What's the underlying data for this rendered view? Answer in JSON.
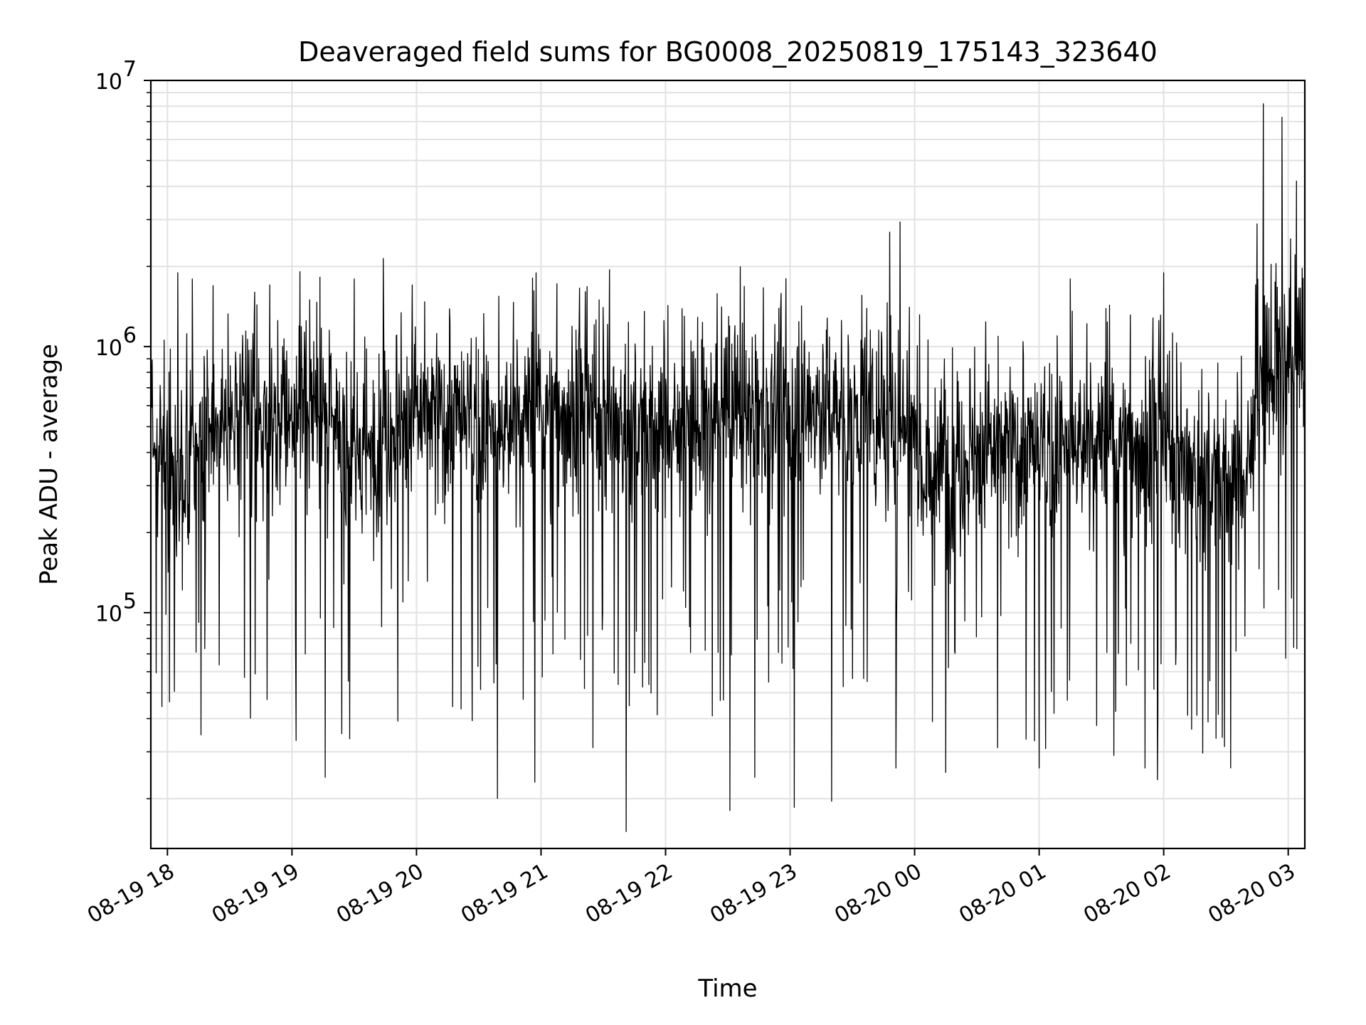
{
  "chart_data": {
    "type": "line",
    "title": "Deaveraged field sums for BG0008_20250819_175143_323640",
    "xlabel": "Time",
    "ylabel": "Peak ADU - average",
    "yscale": "log",
    "ylim": [
      13000,
      10000000
    ],
    "xlim": [
      "2025-08-19 17:52",
      "2025-08-20 03:08"
    ],
    "grid": true,
    "line_color": "#000000",
    "x_ticks": [
      "08-19 18",
      "08-19 19",
      "08-19 20",
      "08-19 21",
      "08-19 22",
      "08-19 23",
      "08-20 00",
      "08-20 01",
      "08-20 02",
      "08-20 03"
    ],
    "y_ticks": [
      {
        "base": "10",
        "exp": "5",
        "value": 100000
      },
      {
        "base": "10",
        "exp": "6",
        "value": 1000000
      },
      {
        "base": "10",
        "exp": "7",
        "value": 10000000
      }
    ],
    "series": [
      {
        "points": [
          [
            "2025-08-19 17:52",
            560000
          ],
          [
            "2025-08-19 18:00",
            350000
          ],
          [
            "2025-08-19 18:05",
            300000
          ],
          [
            "2025-08-19 18:15",
            420000
          ],
          [
            "2025-08-19 18:25",
            480000
          ],
          [
            "2025-08-19 18:40",
            530000
          ],
          [
            "2025-08-19 18:55",
            570000
          ],
          [
            "2025-08-19 19:10",
            610000
          ],
          [
            "2025-08-19 19:25",
            430000
          ],
          [
            "2025-08-19 19:35",
            380000
          ],
          [
            "2025-08-19 19:45",
            500000
          ],
          [
            "2025-08-19 20:00",
            560000
          ],
          [
            "2025-08-19 20:20",
            520000
          ],
          [
            "2025-08-19 20:40",
            470000
          ],
          [
            "2025-08-19 21:00",
            600000
          ],
          [
            "2025-08-19 21:20",
            560000
          ],
          [
            "2025-08-19 21:40",
            490000
          ],
          [
            "2025-08-19 22:00",
            520000
          ],
          [
            "2025-08-19 22:20",
            500000
          ],
          [
            "2025-08-19 22:40",
            560000
          ],
          [
            "2025-08-19 23:00",
            600000
          ],
          [
            "2025-08-19 23:20",
            580000
          ],
          [
            "2025-08-19 23:40",
            550000
          ],
          [
            "2025-08-20 00:00",
            500000
          ],
          [
            "2025-08-20 00:05",
            330000
          ],
          [
            "2025-08-20 00:20",
            380000
          ],
          [
            "2025-08-20 00:40",
            410000
          ],
          [
            "2025-08-20 01:00",
            390000
          ],
          [
            "2025-08-20 01:20",
            420000
          ],
          [
            "2025-08-20 01:40",
            450000
          ],
          [
            "2025-08-20 02:00",
            430000
          ],
          [
            "2025-08-20 02:15",
            330000
          ],
          [
            "2025-08-20 02:30",
            320000
          ],
          [
            "2025-08-20 02:40",
            340000
          ],
          [
            "2025-08-20 02:45",
            700000
          ],
          [
            "2025-08-20 02:55",
            850000
          ],
          [
            "2025-08-20 03:08",
            800000
          ]
        ]
      }
    ],
    "spikes_up": [
      [
        "2025-08-19 18:05",
        1900000
      ],
      [
        "2025-08-19 18:12",
        1800000
      ],
      [
        "2025-08-19 18:22",
        1700000
      ],
      [
        "2025-08-19 19:02",
        2050000
      ],
      [
        "2025-08-19 19:30",
        1800000
      ],
      [
        "2025-08-19 19:44",
        2150000
      ],
      [
        "2025-08-19 21:33",
        1950000
      ],
      [
        "2025-08-19 22:36",
        2000000
      ],
      [
        "2025-08-19 23:48",
        2700000
      ],
      [
        "2025-08-19 23:53",
        2950000
      ],
      [
        "2025-08-20 01:15",
        1800000
      ],
      [
        "2025-08-20 02:00",
        1900000
      ],
      [
        "2025-08-20 02:45",
        2900000
      ],
      [
        "2025-08-20 02:48",
        8200000
      ],
      [
        "2025-08-20 02:57",
        7300000
      ],
      [
        "2025-08-20 03:04",
        4200000
      ]
    ],
    "spikes_down": [
      [
        "2025-08-19 18:18",
        73000
      ],
      [
        "2025-08-19 18:40",
        40000
      ],
      [
        "2025-08-19 18:48",
        47000
      ],
      [
        "2025-08-19 19:02",
        33000
      ],
      [
        "2025-08-19 19:16",
        24000
      ],
      [
        "2025-08-19 19:24",
        35000
      ],
      [
        "2025-08-19 19:51",
        39000
      ],
      [
        "2025-08-19 20:39",
        20000
      ],
      [
        "2025-08-19 20:57",
        23000
      ],
      [
        "2025-08-19 21:25",
        31000
      ],
      [
        "2025-08-19 21:41",
        15000
      ],
      [
        "2025-08-19 22:31",
        18000
      ],
      [
        "2025-08-19 22:43",
        24000
      ],
      [
        "2025-08-19 23:02",
        18500
      ],
      [
        "2025-08-19 23:20",
        19500
      ],
      [
        "2025-08-19 23:51",
        26000
      ],
      [
        "2025-08-20 00:15",
        25000
      ],
      [
        "2025-08-20 00:40",
        31000
      ],
      [
        "2025-08-20 01:00",
        26000
      ],
      [
        "2025-08-20 01:36",
        29000
      ],
      [
        "2025-08-20 01:51",
        26000
      ],
      [
        "2025-08-20 01:57",
        23500
      ],
      [
        "2025-08-20 02:16",
        41000
      ]
    ]
  }
}
